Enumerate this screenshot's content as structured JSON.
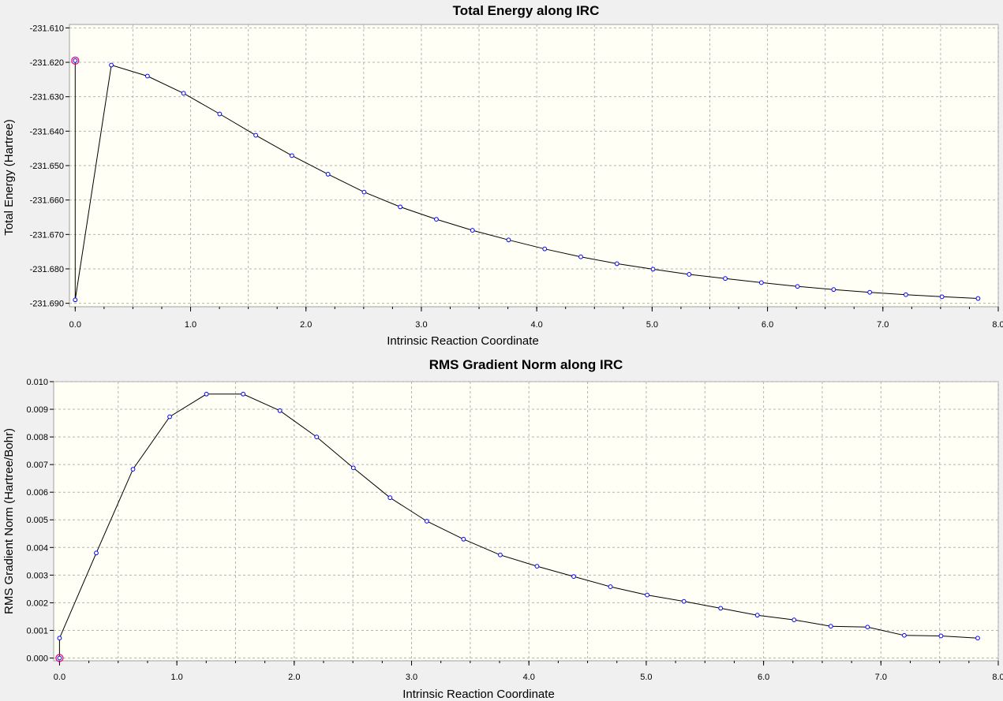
{
  "chart_data": [
    {
      "type": "line",
      "title": "Total Energy along IRC",
      "xlabel": "Intrinsic Reaction Coordinate",
      "ylabel": "Total Energy (Hartree)",
      "xlim": [
        -0.05,
        8.0
      ],
      "ylim": [
        -231.691,
        -231.609
      ],
      "xticks": [
        0.0,
        1.0,
        2.0,
        3.0,
        4.0,
        5.0,
        6.0,
        7.0,
        8.0
      ],
      "xtick_labels": [
        "0.0",
        "1.0",
        "2.0",
        "3.0",
        "4.0",
        "5.0",
        "6.0",
        "7.0",
        "8.0"
      ],
      "yticks": [
        -231.61,
        -231.62,
        -231.63,
        -231.64,
        -231.65,
        -231.66,
        -231.67,
        -231.68,
        -231.69
      ],
      "ytick_labels": [
        "-231.610",
        "-231.620",
        "-231.630",
        "-231.640",
        "-231.650",
        "-231.660",
        "-231.670",
        "-231.680",
        "-231.690"
      ],
      "grid": true,
      "series": [
        {
          "x": [
            0.0,
            0.0,
            0.313,
            0.626,
            0.939,
            1.252,
            1.565,
            1.878,
            2.191,
            2.504,
            2.817,
            3.13,
            3.443,
            3.756,
            4.069,
            4.382,
            4.695,
            5.008,
            5.321,
            5.634,
            5.947,
            6.26,
            6.573,
            6.886,
            7.199,
            7.512,
            7.825
          ],
          "y": [
            -231.6195,
            -231.689,
            -231.6208,
            -231.624,
            -231.629,
            -231.635,
            -231.6412,
            -231.6471,
            -231.6525,
            -231.6577,
            -231.662,
            -231.6656,
            -231.6688,
            -231.6716,
            -231.6742,
            -231.6765,
            -231.6785,
            -231.6801,
            -231.6816,
            -231.6828,
            -231.684,
            -231.6851,
            -231.686,
            -231.6868,
            -231.6875,
            -231.6881,
            -231.6886
          ]
        }
      ],
      "selected_point": {
        "x": 0.0,
        "y": -231.6195
      }
    },
    {
      "type": "line",
      "title": "RMS Gradient Norm along IRC",
      "xlabel": "Intrinsic Reaction Coordinate",
      "ylabel": "RMS Gradient Norm (Hartree/Bohr)",
      "xlim": [
        -0.05,
        8.0
      ],
      "ylim": [
        -0.0001,
        0.01
      ],
      "xticks": [
        0.0,
        1.0,
        2.0,
        3.0,
        4.0,
        5.0,
        6.0,
        7.0,
        8.0
      ],
      "xtick_labels": [
        "0.0",
        "1.0",
        "2.0",
        "3.0",
        "4.0",
        "5.0",
        "6.0",
        "7.0",
        "8.0"
      ],
      "yticks": [
        0.0,
        0.001,
        0.002,
        0.003,
        0.004,
        0.005,
        0.006,
        0.007,
        0.008,
        0.009,
        0.01
      ],
      "ytick_labels": [
        "0.000",
        "0.001",
        "0.002",
        "0.003",
        "0.004",
        "0.005",
        "0.006",
        "0.007",
        "0.008",
        "0.009",
        "0.010"
      ],
      "grid": true,
      "series": [
        {
          "x": [
            0.0,
            0.0,
            0.313,
            0.626,
            0.939,
            1.252,
            1.565,
            1.878,
            2.191,
            2.504,
            2.817,
            3.13,
            3.443,
            3.756,
            4.069,
            4.382,
            4.695,
            5.008,
            5.321,
            5.634,
            5.947,
            6.26,
            6.573,
            6.886,
            7.199,
            7.512,
            7.825
          ],
          "y": [
            0.0,
            0.00072,
            0.0038,
            0.00683,
            0.00873,
            0.00955,
            0.00955,
            0.00895,
            0.008,
            0.00688,
            0.0058,
            0.00495,
            0.0043,
            0.00373,
            0.00332,
            0.00295,
            0.00258,
            0.00228,
            0.00205,
            0.0018,
            0.00155,
            0.00138,
            0.00115,
            0.00112,
            0.00082,
            0.0008,
            0.00072
          ]
        }
      ],
      "selected_point": {
        "x": 0.0,
        "y": 0.0
      }
    }
  ]
}
